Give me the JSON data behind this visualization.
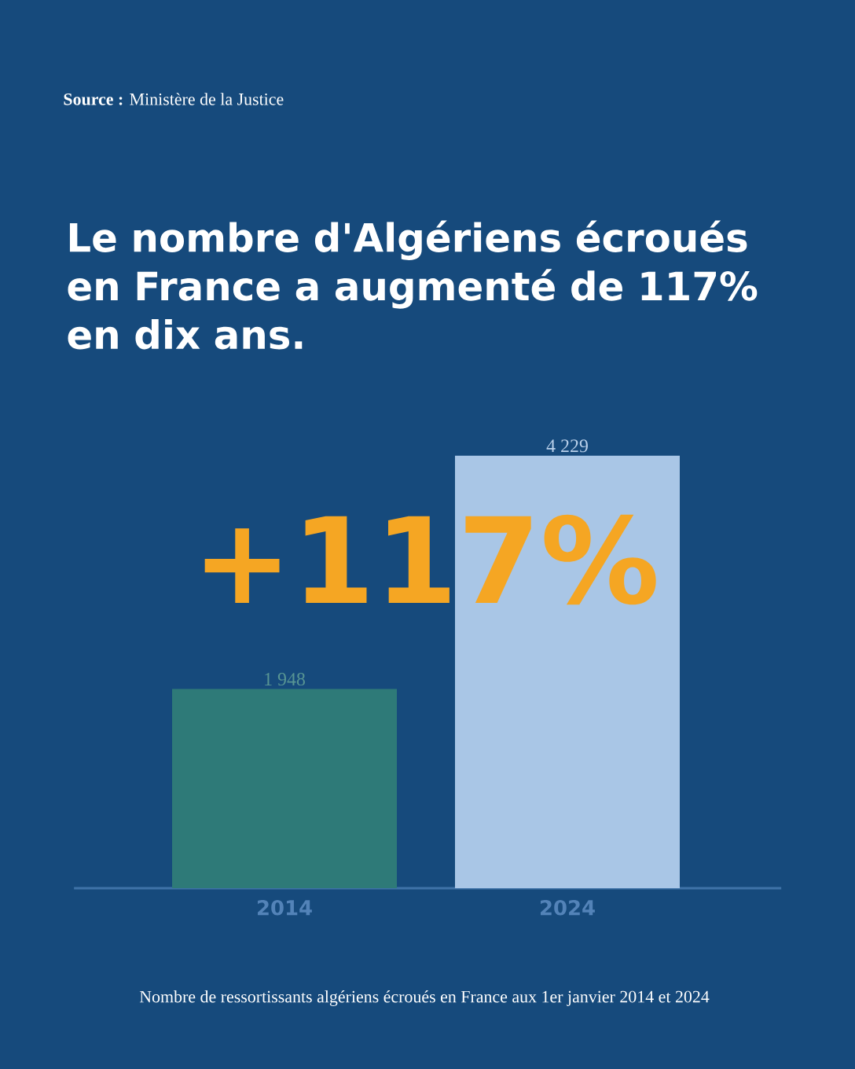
{
  "chart_data": {
    "type": "bar",
    "title": "Le nombre d'Algériens écroués en France a augmenté de 117% en dix ans.",
    "categories": [
      "2014",
      "2024"
    ],
    "values": [
      1948,
      4229
    ],
    "colors": [
      "#2e7a78",
      "#a9c6e6"
    ],
    "value_labels": [
      "1 948",
      "4 229"
    ],
    "annotations": [
      "**Source :** Ministère de la Justice",
      "+117%",
      "Nombre de ressortissants algériens écroués en France aux 1er janvier 2014 et 2024"
    ]
  }
}
